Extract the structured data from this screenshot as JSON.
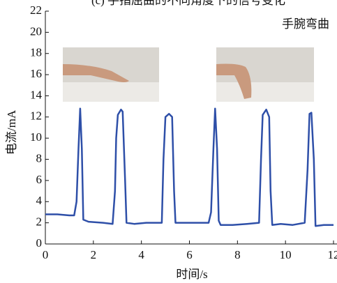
{
  "chart_data": {
    "type": "line",
    "title": "(c) 手指屈曲的不同角度下的信号变化",
    "annotation": "手腕弯曲",
    "x_label": "时间/s",
    "y_label": "电流/mA",
    "xlim": [
      0,
      12
    ],
    "xticks": [
      0,
      2,
      4,
      6,
      8,
      10,
      12
    ],
    "ylim": [
      0,
      22
    ],
    "yticks": [
      0,
      2,
      4,
      6,
      8,
      10,
      12,
      14,
      16,
      18,
      20,
      22
    ],
    "series": [
      {
        "color": "#2e4fa8",
        "x": [
          0,
          0.5,
          1.0,
          1.2,
          1.3,
          1.38,
          1.45,
          1.52,
          1.58,
          1.8,
          2.4,
          2.8,
          2.9,
          2.95,
          3.02,
          3.15,
          3.22,
          3.32,
          3.38,
          3.7,
          4.2,
          4.6,
          4.85,
          4.92,
          5.0,
          5.15,
          5.28,
          5.36,
          5.42,
          5.8,
          6.3,
          6.8,
          6.9,
          7.0,
          7.07,
          7.15,
          7.22,
          7.3,
          7.8,
          8.4,
          8.9,
          8.98,
          9.05,
          9.2,
          9.32,
          9.38,
          9.45,
          9.8,
          10.3,
          10.8,
          10.92,
          11.0,
          11.08,
          11.18,
          11.25,
          11.6,
          12
        ],
        "values": [
          2.8,
          2.8,
          2.7,
          2.7,
          4.0,
          9,
          12.8,
          9,
          2.3,
          2.1,
          2.0,
          1.9,
          5,
          10,
          12.2,
          12.7,
          12.5,
          6,
          2.0,
          1.9,
          2.0,
          2.0,
          2.0,
          8,
          12,
          12.3,
          12,
          5,
          2.0,
          2.0,
          2.0,
          2.0,
          3,
          9,
          12.8,
          9,
          2.2,
          1.8,
          1.8,
          1.9,
          2.0,
          8,
          12.2,
          12.7,
          12.0,
          5,
          1.8,
          1.9,
          1.8,
          2.0,
          7,
          12.3,
          12.4,
          8,
          1.7,
          1.8,
          1.8
        ]
      }
    ]
  }
}
